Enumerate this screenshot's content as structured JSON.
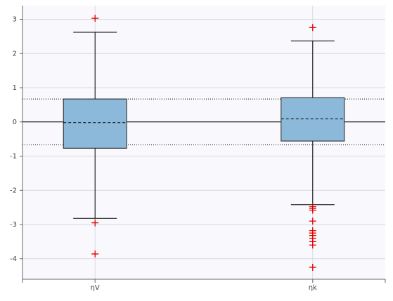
{
  "chart_data": {
    "type": "box",
    "categories": [
      "ηV",
      "ηk"
    ],
    "boxes": [
      {
        "whisker_low": -2.82,
        "q1": -0.77,
        "median": -0.02,
        "q3": 0.67,
        "whisker_high": 2.62,
        "outliers": [
          3.03,
          -2.95,
          -3.86
        ]
      },
      {
        "whisker_low": -2.42,
        "q1": -0.56,
        "median": 0.09,
        "q3": 0.71,
        "whisker_high": 2.37,
        "outliers": [
          2.76,
          -2.48,
          -2.53,
          -2.58,
          -2.9,
          -3.18,
          -3.25,
          -3.32,
          -3.4,
          -3.5,
          -3.6,
          -4.25
        ]
      }
    ],
    "box_color": "#8cb8d9",
    "outlier_color": "#e00000",
    "reference_lines": [
      {
        "value": 0,
        "style": "solid"
      },
      {
        "value": 0.67,
        "style": "dotted"
      },
      {
        "value": -0.67,
        "style": "dotted"
      }
    ],
    "ylim": [
      -4.6,
      3.4
    ],
    "yticks": [
      -4,
      -3,
      -2,
      -1,
      0,
      1,
      2,
      3
    ],
    "grid": true
  }
}
